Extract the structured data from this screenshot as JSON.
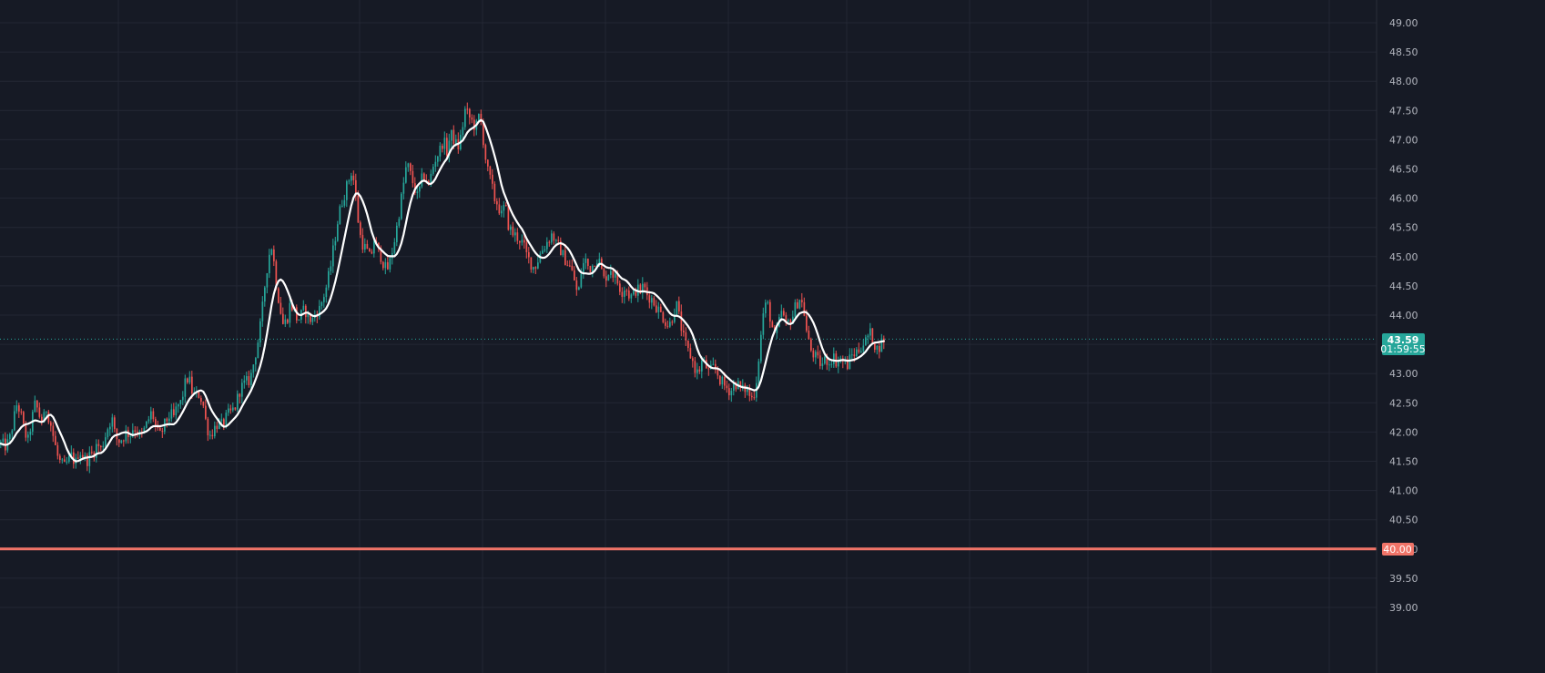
{
  "colors": {
    "background": "#161a25",
    "grid": "#232734",
    "up": "#26a69a",
    "down": "#ef5350",
    "ma": "#ffffff",
    "support": "#f07468",
    "axis_text": "#b2b5be",
    "current_line": "#26a69a"
  },
  "price_axis": {
    "ticks": [
      "49.00",
      "48.50",
      "48.00",
      "47.50",
      "47.00",
      "46.50",
      "46.00",
      "45.50",
      "45.00",
      "44.50",
      "44.00",
      "43.50",
      "43.00",
      "42.50",
      "42.00",
      "41.50",
      "41.00",
      "40.50",
      "40.00",
      "39.50",
      "39.00"
    ]
  },
  "current_price": {
    "value": "43.59",
    "countdown": "01:59:55"
  },
  "support_level": {
    "value": 40.0,
    "label": "40.00"
  },
  "chart_data": {
    "type": "candlestick",
    "ylim": [
      38.92,
      49.43
    ],
    "grid": true,
    "indicator": "moving-average",
    "price_path": [
      [
        0,
        41.8
      ],
      [
        6,
        41.75
      ],
      [
        10,
        41.9
      ],
      [
        14,
        42.2
      ],
      [
        18,
        42.5
      ],
      [
        22,
        42.3
      ],
      [
        26,
        42.0
      ],
      [
        30,
        41.85
      ],
      [
        34,
        42.2
      ],
      [
        38,
        42.5
      ],
      [
        42,
        42.3
      ],
      [
        46,
        42.15
      ],
      [
        50,
        42.4
      ],
      [
        54,
        42.2
      ],
      [
        58,
        41.9
      ],
      [
        62,
        41.6
      ],
      [
        66,
        41.45
      ],
      [
        70,
        41.4
      ],
      [
        74,
        41.5
      ],
      [
        78,
        41.6
      ],
      [
        82,
        41.45
      ],
      [
        86,
        41.7
      ],
      [
        90,
        41.6
      ],
      [
        94,
        41.5
      ],
      [
        98,
        41.6
      ],
      [
        102,
        41.65
      ],
      [
        106,
        41.8
      ],
      [
        110,
        41.7
      ],
      [
        114,
        41.9
      ],
      [
        118,
        42.1
      ],
      [
        122,
        42.25
      ],
      [
        126,
        41.9
      ],
      [
        130,
        41.85
      ],
      [
        134,
        41.9
      ],
      [
        138,
        42.0
      ],
      [
        142,
        41.95
      ],
      [
        146,
        42.1
      ],
      [
        150,
        42.0
      ],
      [
        154,
        41.9
      ],
      [
        158,
        42.05
      ],
      [
        162,
        42.2
      ],
      [
        166,
        42.35
      ],
      [
        170,
        42.1
      ],
      [
        174,
        41.9
      ],
      [
        178,
        42.05
      ],
      [
        182,
        42.2
      ],
      [
        186,
        42.3
      ],
      [
        190,
        42.25
      ],
      [
        194,
        42.45
      ],
      [
        198,
        42.5
      ],
      [
        202,
        42.8
      ],
      [
        206,
        42.95
      ],
      [
        210,
        42.7
      ],
      [
        214,
        42.6
      ],
      [
        218,
        42.65
      ],
      [
        222,
        42.5
      ],
      [
        226,
        42.1
      ],
      [
        230,
        41.95
      ],
      [
        234,
        42.05
      ],
      [
        238,
        42.15
      ],
      [
        242,
        42.1
      ],
      [
        246,
        42.2
      ],
      [
        250,
        42.3
      ],
      [
        254,
        42.35
      ],
      [
        258,
        42.45
      ],
      [
        262,
        42.7
      ],
      [
        266,
        42.8
      ],
      [
        270,
        42.85
      ],
      [
        274,
        42.9
      ],
      [
        278,
        43.2
      ],
      [
        282,
        43.5
      ],
      [
        286,
        43.9
      ],
      [
        290,
        44.5
      ],
      [
        294,
        45.0
      ],
      [
        298,
        45.2
      ],
      [
        302,
        44.6
      ],
      [
        306,
        44.2
      ],
      [
        310,
        43.85
      ],
      [
        314,
        43.9
      ],
      [
        318,
        44.2
      ],
      [
        322,
        44.1
      ],
      [
        326,
        43.9
      ],
      [
        330,
        44.0
      ],
      [
        334,
        44.1
      ],
      [
        338,
        43.95
      ],
      [
        342,
        43.9
      ],
      [
        346,
        44.05
      ],
      [
        350,
        44.1
      ],
      [
        354,
        44.3
      ],
      [
        358,
        44.5
      ],
      [
        362,
        44.8
      ],
      [
        366,
        45.2
      ],
      [
        370,
        45.6
      ],
      [
        374,
        45.9
      ],
      [
        378,
        46.1
      ],
      [
        382,
        46.3
      ],
      [
        386,
        46.5
      ],
      [
        390,
        46.0
      ],
      [
        394,
        45.4
      ],
      [
        398,
        45.2
      ],
      [
        402,
        45.1
      ],
      [
        406,
        44.95
      ],
      [
        410,
        45.3
      ],
      [
        414,
        45.1
      ],
      [
        418,
        45.0
      ],
      [
        422,
        44.8
      ],
      [
        426,
        44.8
      ],
      [
        430,
        45.1
      ],
      [
        434,
        45.4
      ],
      [
        438,
        45.8
      ],
      [
        442,
        46.2
      ],
      [
        446,
        46.6
      ],
      [
        450,
        46.4
      ],
      [
        454,
        46.2
      ],
      [
        458,
        46.0
      ],
      [
        462,
        46.3
      ],
      [
        466,
        46.4
      ],
      [
        470,
        46.2
      ],
      [
        474,
        46.5
      ],
      [
        478,
        46.7
      ],
      [
        482,
        46.8
      ],
      [
        486,
        47.0
      ],
      [
        490,
        46.8
      ],
      [
        494,
        47.1
      ],
      [
        498,
        47.0
      ],
      [
        502,
        46.85
      ],
      [
        506,
        47.1
      ],
      [
        510,
        47.5
      ],
      [
        514,
        47.4
      ],
      [
        518,
        47.3
      ],
      [
        522,
        47.2
      ],
      [
        526,
        47.45
      ],
      [
        530,
        47.0
      ],
      [
        534,
        46.5
      ],
      [
        538,
        46.3
      ],
      [
        542,
        46.0
      ],
      [
        546,
        45.9
      ],
      [
        550,
        45.7
      ],
      [
        554,
        45.9
      ],
      [
        558,
        45.5
      ],
      [
        562,
        45.4
      ],
      [
        566,
        45.35
      ],
      [
        570,
        45.3
      ],
      [
        574,
        45.2
      ],
      [
        578,
        45.0
      ],
      [
        582,
        44.9
      ],
      [
        586,
        44.8
      ],
      [
        590,
        44.95
      ],
      [
        594,
        45.1
      ],
      [
        598,
        45.2
      ],
      [
        602,
        45.3
      ],
      [
        606,
        45.4
      ],
      [
        610,
        45.2
      ],
      [
        614,
        45.15
      ],
      [
        618,
        45.0
      ],
      [
        622,
        44.9
      ],
      [
        626,
        44.8
      ],
      [
        630,
        44.6
      ],
      [
        634,
        44.3
      ],
      [
        638,
        44.8
      ],
      [
        642,
        44.95
      ],
      [
        646,
        44.8
      ],
      [
        650,
        44.85
      ],
      [
        654,
        45.0
      ],
      [
        658,
        44.9
      ],
      [
        662,
        44.6
      ],
      [
        666,
        44.7
      ],
      [
        670,
        44.8
      ],
      [
        674,
        44.65
      ],
      [
        678,
        44.55
      ],
      [
        682,
        44.4
      ],
      [
        686,
        44.5
      ],
      [
        690,
        44.35
      ],
      [
        694,
        44.3
      ],
      [
        698,
        44.45
      ],
      [
        702,
        44.4
      ],
      [
        706,
        44.5
      ],
      [
        710,
        44.35
      ],
      [
        714,
        44.3
      ],
      [
        718,
        44.2
      ],
      [
        722,
        44.1
      ],
      [
        726,
        44.0
      ],
      [
        730,
        43.9
      ],
      [
        734,
        43.8
      ],
      [
        738,
        44.0
      ],
      [
        742,
        44.2
      ],
      [
        746,
        43.9
      ],
      [
        750,
        43.6
      ],
      [
        754,
        43.4
      ],
      [
        758,
        43.3
      ],
      [
        762,
        43.1
      ],
      [
        766,
        43.0
      ],
      [
        770,
        43.2
      ],
      [
        774,
        43.15
      ],
      [
        778,
        43.0
      ],
      [
        782,
        43.1
      ],
      [
        786,
        43.05
      ],
      [
        790,
        42.9
      ],
      [
        794,
        42.8
      ],
      [
        798,
        42.75
      ],
      [
        802,
        42.7
      ],
      [
        806,
        42.85
      ],
      [
        810,
        42.8
      ],
      [
        814,
        42.7
      ],
      [
        818,
        42.75
      ],
      [
        822,
        42.65
      ],
      [
        826,
        42.55
      ],
      [
        830,
        42.9
      ],
      [
        834,
        43.5
      ],
      [
        838,
        44.1
      ],
      [
        842,
        44.2
      ],
      [
        846,
        43.9
      ],
      [
        850,
        43.6
      ],
      [
        854,
        43.8
      ],
      [
        858,
        44.1
      ],
      [
        862,
        43.8
      ],
      [
        866,
        43.9
      ],
      [
        870,
        44.0
      ],
      [
        874,
        44.2
      ],
      [
        878,
        44.3
      ],
      [
        882,
        44.1
      ],
      [
        886,
        43.6
      ],
      [
        890,
        43.4
      ],
      [
        894,
        43.3
      ],
      [
        898,
        43.2
      ],
      [
        902,
        43.15
      ],
      [
        906,
        43.25
      ],
      [
        910,
        43.2
      ],
      [
        914,
        43.3
      ],
      [
        918,
        43.2
      ],
      [
        922,
        43.25
      ],
      [
        926,
        43.2
      ],
      [
        930,
        43.15
      ],
      [
        934,
        43.3
      ],
      [
        938,
        43.35
      ],
      [
        942,
        43.4
      ],
      [
        946,
        43.5
      ],
      [
        950,
        43.55
      ],
      [
        954,
        43.7
      ],
      [
        958,
        43.6
      ],
      [
        962,
        43.4
      ],
      [
        966,
        43.5
      ],
      [
        970,
        43.59
      ]
    ]
  }
}
